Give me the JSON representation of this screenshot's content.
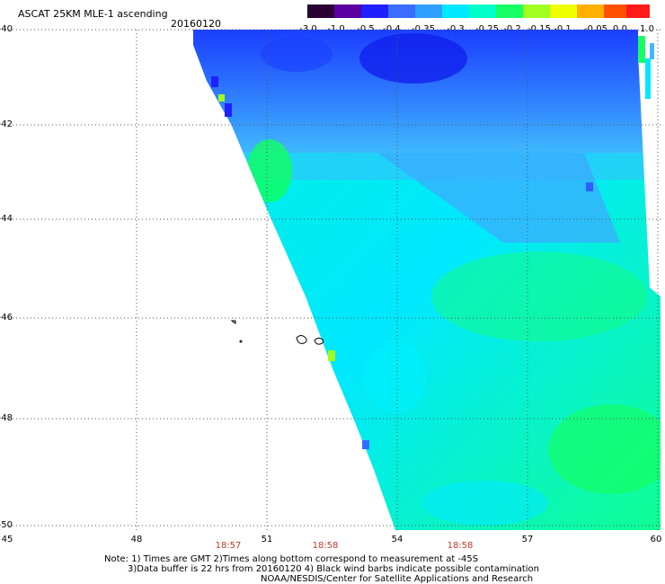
{
  "header": {
    "title": "ASCAT 25KM MLE-1 ascending",
    "date": "20160120"
  },
  "colorbar": {
    "labels": [
      "-3.0",
      "-1.0",
      "-0.5",
      "-0.4",
      "-0.35",
      "-0.3",
      "-0.25",
      "-0.2",
      "-0.15",
      "-0.1",
      "-0.05",
      "0.0",
      "1.0"
    ],
    "colors": [
      "#2a0033",
      "#5a00a0",
      "#2020ff",
      "#3a6cff",
      "#2fa0ff",
      "#00e8ff",
      "#00ffc8",
      "#18ff66",
      "#a0ff20",
      "#f0ff00",
      "#ffb000",
      "#ff5000",
      "#ff1a1a"
    ]
  },
  "axes": {
    "lat_labels": [
      "-40",
      "-42",
      "-44",
      "-46",
      "-48",
      "-50"
    ],
    "lon_labels": [
      "45",
      "48",
      "51",
      "54",
      "57",
      "60"
    ],
    "time_labels": [
      "18:57",
      "18:58",
      "18:58"
    ]
  },
  "notes": {
    "line1": "Note: 1) Times are GMT 2)Times along bottom correspond to measurement at -45S",
    "line2": "3)Data buffer is 22 hrs from 20160120 4) Black wind barbs indicate possible contamination",
    "line3": "NOAA/NESDIS/Center for Satellite Applications and Research"
  }
}
